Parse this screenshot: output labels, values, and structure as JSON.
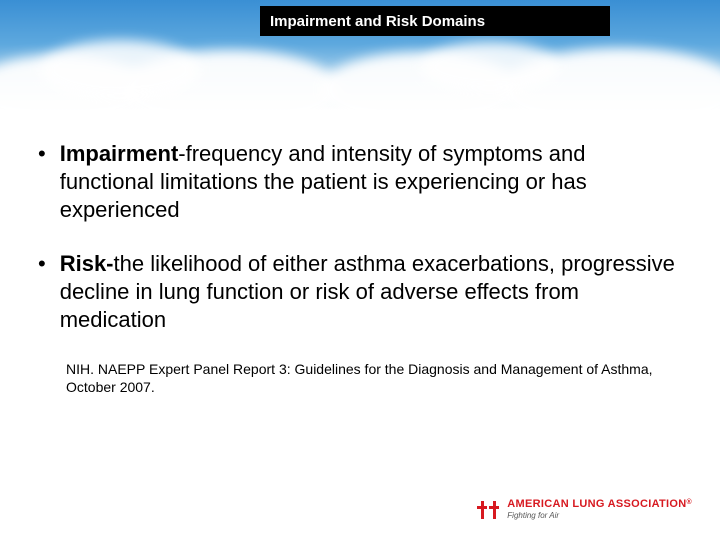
{
  "header": {
    "title": "Impairment and Risk Domains",
    "title_bg": "#000000",
    "title_color": "#ffffff",
    "title_fontsize": 15
  },
  "background": {
    "sky_gradient_top": "#3a8fd4",
    "sky_gradient_mid": "#5da8de",
    "sky_gradient_bottom": "#ffffff",
    "cloud_color": "#ffffff"
  },
  "bullets": [
    {
      "bold_lead": "Impairment",
      "text": "-frequency and intensity of symptoms and functional limitations the patient is experiencing or has experienced"
    },
    {
      "bold_lead": "Risk-",
      "text": "the likelihood of either asthma exacerbations, progressive decline in lung function or risk of adverse effects from medication"
    }
  ],
  "citation": "NIH. NAEPP Expert Panel Report 3: Guidelines for the Diagnosis and Management of Asthma, October 2007.",
  "body_style": {
    "fontsize": 22,
    "lineheight": 28,
    "color": "#000000",
    "citation_fontsize": 14
  },
  "logo": {
    "org_name": "AMERICAN LUNG ASSOCIATION",
    "tagline": "Fighting for Air",
    "accent_color": "#d71920",
    "icon": "double-cross-icon"
  }
}
